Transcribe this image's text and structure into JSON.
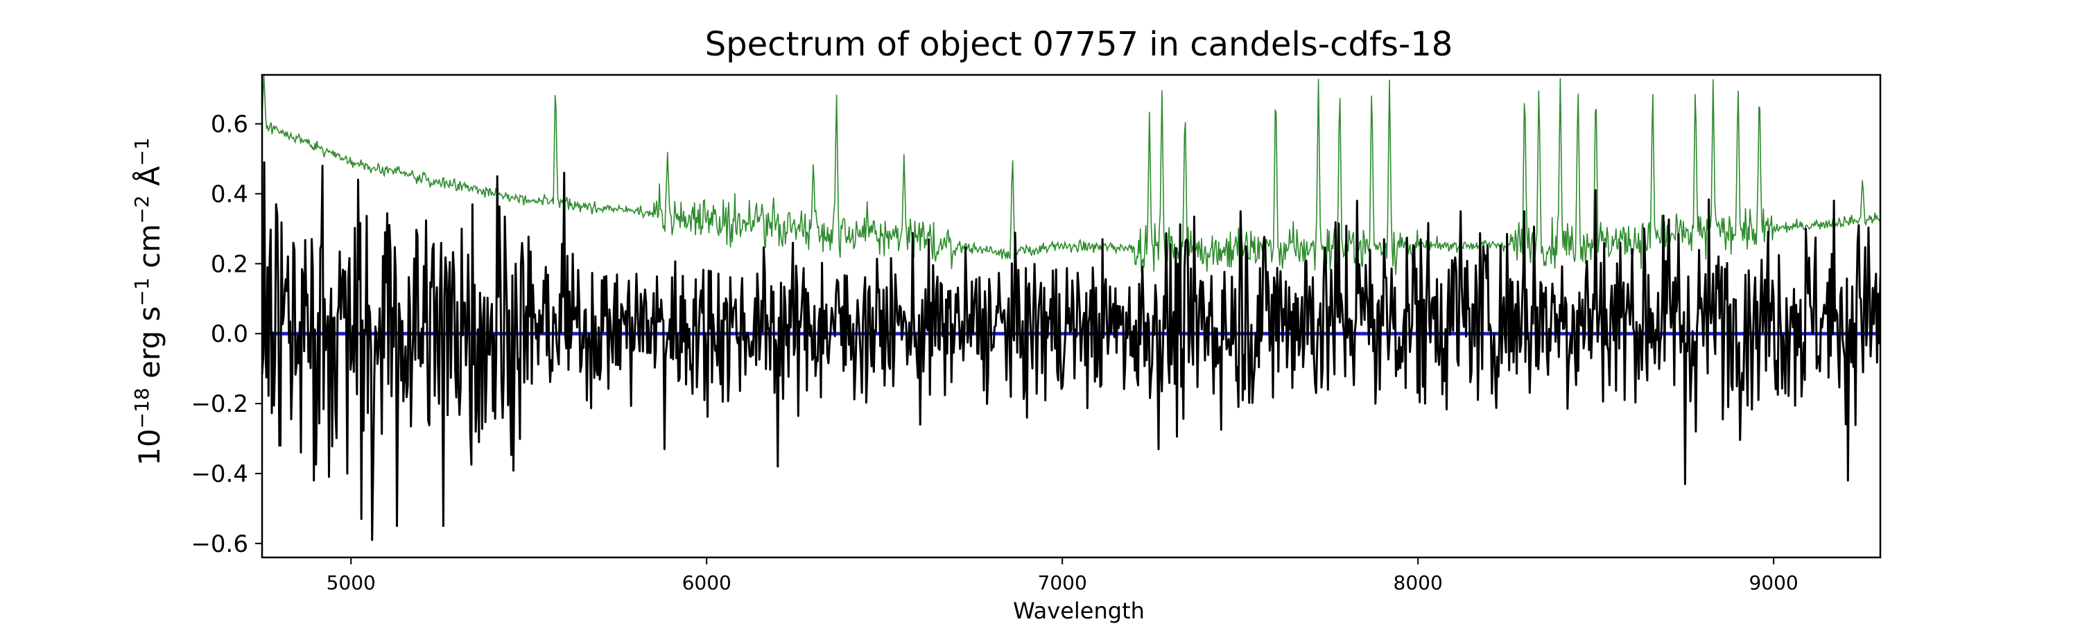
{
  "chart_data": {
    "type": "line",
    "title": "Spectrum of object 07757 in candels-cdfs-18",
    "xlabel": "Wavelength",
    "ylabel": {
      "base": "10",
      "exp1": "−18",
      "t1": " erg s",
      "exp2": "−1",
      "t2": " cm",
      "exp3": "−2",
      "t3": " Å",
      "exp4": "−1"
    },
    "xlim": [
      4750,
      9300
    ],
    "ylim": [
      -0.64,
      0.74
    ],
    "xticks": [
      5000,
      6000,
      7000,
      8000,
      9000
    ],
    "yticks": [
      -0.6,
      -0.4,
      -0.2,
      0.0,
      0.2,
      0.4,
      0.6
    ],
    "ytick_labels": [
      "−0.6",
      "−0.4",
      "−0.2",
      "0.0",
      "0.2",
      "0.4",
      "0.6"
    ],
    "grid": false,
    "series": [
      {
        "role": "error",
        "color": "#2e8b2e",
        "continuum_x": [
          4750,
          4800,
          5000,
          5500,
          6000,
          6500,
          6850,
          7000,
          7500,
          8000,
          8500,
          9000,
          9300
        ],
        "continuum_y": [
          0.6,
          0.58,
          0.49,
          0.38,
          0.33,
          0.28,
          0.23,
          0.25,
          0.24,
          0.25,
          0.26,
          0.3,
          0.33
        ],
        "spikes": [
          {
            "x": 4755,
            "y": 0.74
          },
          {
            "x": 5575,
            "y": 0.74
          },
          {
            "x": 5890,
            "y": 0.52
          },
          {
            "x": 6300,
            "y": 0.5
          },
          {
            "x": 6365,
            "y": 0.7
          },
          {
            "x": 6555,
            "y": 0.52
          },
          {
            "x": 6860,
            "y": 0.53
          },
          {
            "x": 7245,
            "y": 0.64
          },
          {
            "x": 7280,
            "y": 0.72
          },
          {
            "x": 7345,
            "y": 0.68
          },
          {
            "x": 7600,
            "y": 0.74
          },
          {
            "x": 7720,
            "y": 0.74
          },
          {
            "x": 7780,
            "y": 0.74
          },
          {
            "x": 7870,
            "y": 0.74
          },
          {
            "x": 7920,
            "y": 0.74
          },
          {
            "x": 8300,
            "y": 0.74
          },
          {
            "x": 8340,
            "y": 0.74
          },
          {
            "x": 8400,
            "y": 0.74
          },
          {
            "x": 8450,
            "y": 0.74
          },
          {
            "x": 8500,
            "y": 0.74
          },
          {
            "x": 8660,
            "y": 0.72
          },
          {
            "x": 8780,
            "y": 0.74
          },
          {
            "x": 8830,
            "y": 0.74
          },
          {
            "x": 8900,
            "y": 0.74
          },
          {
            "x": 8960,
            "y": 0.74
          },
          {
            "x": 9250,
            "y": 0.45
          }
        ]
      },
      {
        "role": "flux",
        "color": "#000000",
        "extremes": [
          {
            "x": 4755,
            "y": 0.49
          },
          {
            "x": 4790,
            "y": 0.37
          },
          {
            "x": 4800,
            "y": -0.32
          },
          {
            "x": 4860,
            "y": -0.34
          },
          {
            "x": 4895,
            "y": -0.42
          },
          {
            "x": 4920,
            "y": 0.48
          },
          {
            "x": 4990,
            "y": -0.4
          },
          {
            "x": 5020,
            "y": 0.44
          },
          {
            "x": 5030,
            "y": -0.53
          },
          {
            "x": 5060,
            "y": -0.59
          },
          {
            "x": 5095,
            "y": 0.29
          },
          {
            "x": 5130,
            "y": -0.55
          },
          {
            "x": 5260,
            "y": -0.55
          },
          {
            "x": 5310,
            "y": 0.3
          },
          {
            "x": 5360,
            "y": -0.31
          },
          {
            "x": 5410,
            "y": 0.45
          },
          {
            "x": 5600,
            "y": 0.46
          },
          {
            "x": 5880,
            "y": -0.33
          },
          {
            "x": 5995,
            "y": -0.19
          },
          {
            "x": 6200,
            "y": -0.38
          },
          {
            "x": 6600,
            "y": -0.26
          },
          {
            "x": 6900,
            "y": -0.24
          },
          {
            "x": 7500,
            "y": 0.35
          },
          {
            "x": 7830,
            "y": 0.38
          },
          {
            "x": 7880,
            "y": -0.2
          },
          {
            "x": 8120,
            "y": 0.35
          },
          {
            "x": 8300,
            "y": 0.35
          },
          {
            "x": 8500,
            "y": 0.41
          },
          {
            "x": 8750,
            "y": -0.43
          },
          {
            "x": 8780,
            "y": -0.28
          },
          {
            "x": 9210,
            "y": -0.42
          },
          {
            "x": 9240,
            "y": 0.31
          }
        ]
      },
      {
        "role": "model",
        "color": "#1f1fbf",
        "x": [
          4750,
          9300
        ],
        "y": [
          0.0,
          0.0
        ]
      }
    ]
  }
}
